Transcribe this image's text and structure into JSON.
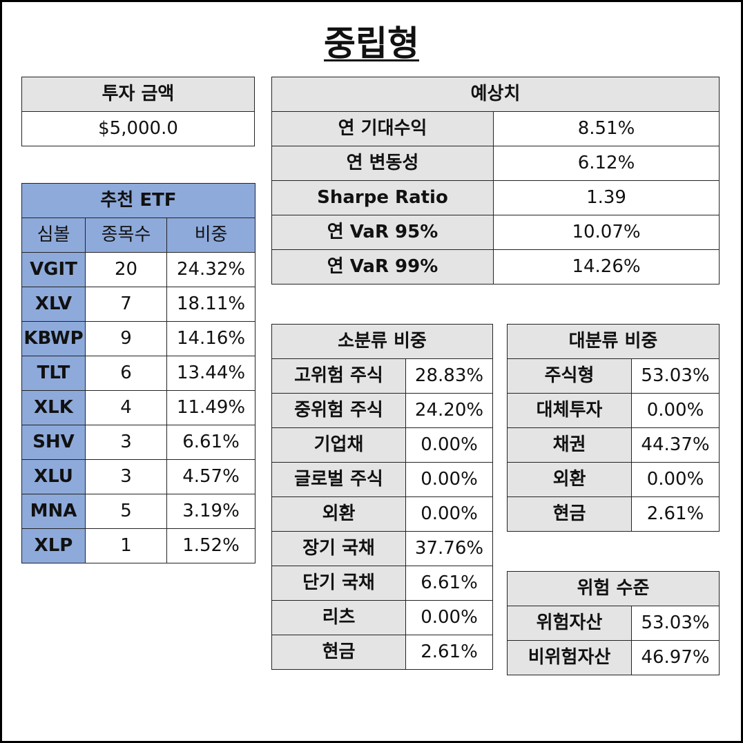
{
  "title": "중립형",
  "investment": {
    "header": "투자 금액",
    "amount": "$5,000.0"
  },
  "etf": {
    "header": "추천 ETF",
    "columns": [
      "심볼",
      "종목수",
      "비중"
    ],
    "rows": [
      {
        "symbol": "VGIT",
        "count": "20",
        "weight": "24.32%"
      },
      {
        "symbol": "XLV",
        "count": "7",
        "weight": "18.11%"
      },
      {
        "symbol": "KBWP",
        "count": "9",
        "weight": "14.16%"
      },
      {
        "symbol": "TLT",
        "count": "6",
        "weight": "13.44%"
      },
      {
        "symbol": "XLK",
        "count": "4",
        "weight": "11.49%"
      },
      {
        "symbol": "SHV",
        "count": "3",
        "weight": "6.61%"
      },
      {
        "symbol": "XLU",
        "count": "3",
        "weight": "4.57%"
      },
      {
        "symbol": "MNA",
        "count": "5",
        "weight": "3.19%"
      },
      {
        "symbol": "XLP",
        "count": "1",
        "weight": "1.52%"
      }
    ]
  },
  "estimates": {
    "header": "예상치",
    "rows": [
      {
        "label": "연 기대수익",
        "value": "8.51%"
      },
      {
        "label": "연 변동성",
        "value": "6.12%"
      },
      {
        "label": "Sharpe Ratio",
        "value": "1.39"
      },
      {
        "label": "연 VaR 95%",
        "value": "10.07%"
      },
      {
        "label": "연 VaR 99%",
        "value": "14.26%"
      }
    ]
  },
  "sub_category": {
    "header": "소분류 비중",
    "rows": [
      {
        "label": "고위험 주식",
        "value": "28.83%"
      },
      {
        "label": "중위험 주식",
        "value": "24.20%"
      },
      {
        "label": "기업채",
        "value": "0.00%"
      },
      {
        "label": "글로벌 주식",
        "value": "0.00%"
      },
      {
        "label": "외환",
        "value": "0.00%"
      },
      {
        "label": "장기 국채",
        "value": "37.76%"
      },
      {
        "label": "단기 국채",
        "value": "6.61%"
      },
      {
        "label": "리츠",
        "value": "0.00%"
      },
      {
        "label": "현금",
        "value": "2.61%"
      }
    ]
  },
  "main_category": {
    "header": "대분류 비중",
    "rows": [
      {
        "label": "주식형",
        "value": "53.03%"
      },
      {
        "label": "대체투자",
        "value": "0.00%"
      },
      {
        "label": "채권",
        "value": "44.37%"
      },
      {
        "label": "외환",
        "value": "0.00%"
      },
      {
        "label": "현금",
        "value": "2.61%"
      }
    ]
  },
  "risk_level": {
    "header": "위험 수준",
    "rows": [
      {
        "label": "위험자산",
        "value": "53.03%"
      },
      {
        "label": "비위험자산",
        "value": "46.97%"
      }
    ]
  },
  "colors": {
    "header_gray": "#e4e4e4",
    "etf_blue": "#8eaadb"
  }
}
